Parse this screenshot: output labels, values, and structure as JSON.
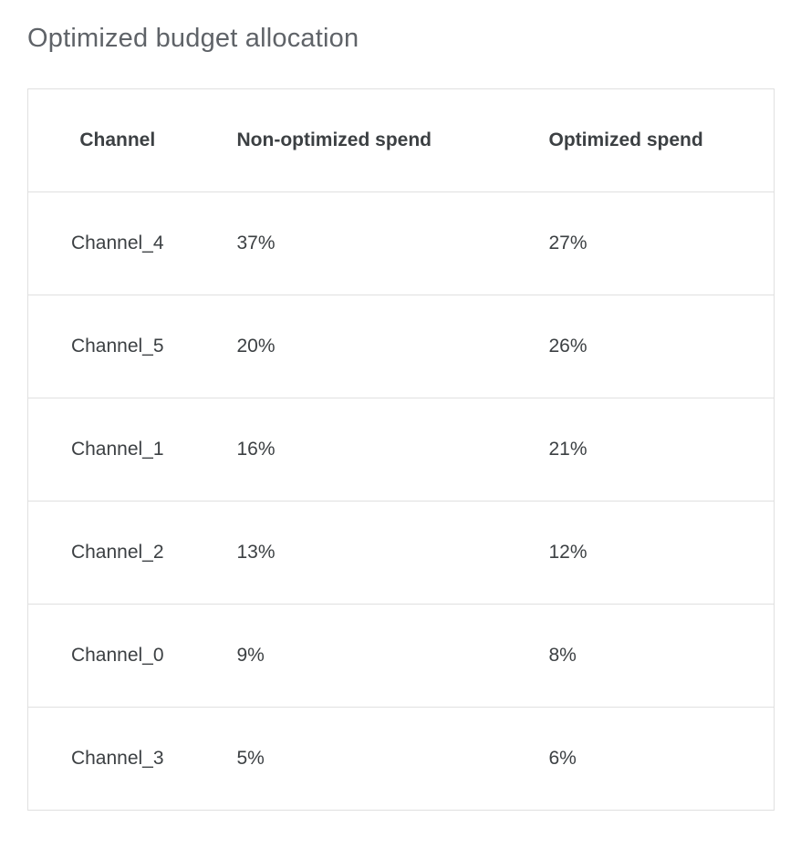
{
  "page": {
    "title": "Optimized budget allocation"
  },
  "colors": {
    "background": "#ffffff",
    "title_text": "#5f6368",
    "table_text": "#3c4043",
    "border": "#e0e0e0"
  },
  "chart_data": {
    "type": "table",
    "title": "Optimized budget allocation",
    "columns": [
      "Channel",
      "Non-optimized spend",
      "Optimized spend"
    ],
    "rows": [
      {
        "channel": "Channel_4",
        "non_optimized": "37%",
        "optimized": "27%"
      },
      {
        "channel": "Channel_5",
        "non_optimized": "20%",
        "optimized": "26%"
      },
      {
        "channel": "Channel_1",
        "non_optimized": "16%",
        "optimized": "21%"
      },
      {
        "channel": "Channel_2",
        "non_optimized": "13%",
        "optimized": "12%"
      },
      {
        "channel": "Channel_0",
        "non_optimized": "9%",
        "optimized": "8%"
      },
      {
        "channel": "Channel_3",
        "non_optimized": "5%",
        "optimized": "6%"
      }
    ]
  }
}
